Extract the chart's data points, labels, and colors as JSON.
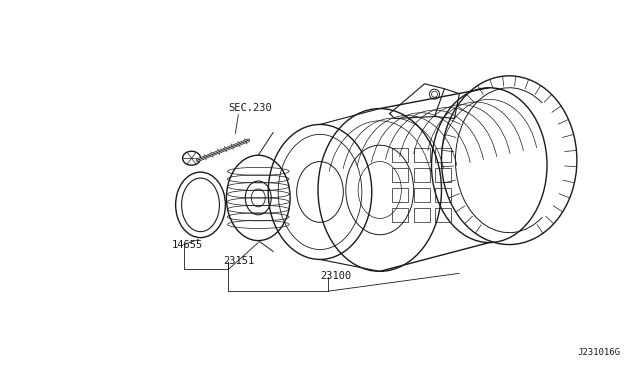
{
  "bg_color": "#ffffff",
  "line_color": "#1a1a1a",
  "text_color": "#1a1a1a",
  "fig_width": 6.4,
  "fig_height": 3.72,
  "diagram_id": "J231016G",
  "labels": {
    "sec230": "SEC.230",
    "part14655": "14655",
    "part23151": "23151",
    "part23100": "23100"
  }
}
